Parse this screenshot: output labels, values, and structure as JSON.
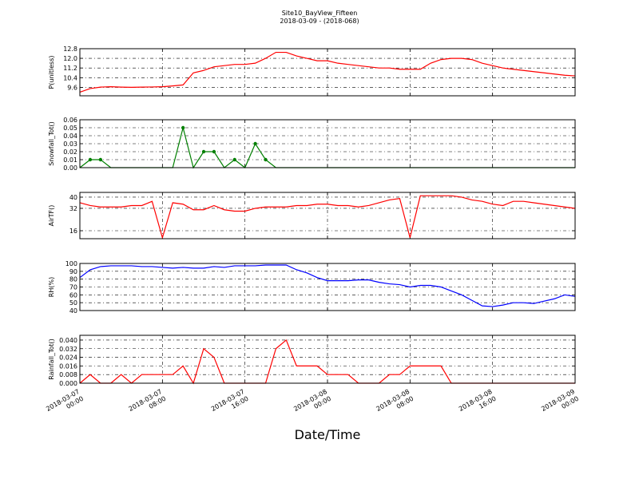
{
  "chart_data": {
    "type": "multi-line",
    "title": "Site10_BayView_Fifteen",
    "subtitle": "2018-03-09 - (2018-068)",
    "x_label": "Date/Time",
    "grid": true,
    "x": [
      "2018-03-07 00:00",
      "2018-03-07 01:00",
      "2018-03-07 02:00",
      "2018-03-07 03:00",
      "2018-03-07 04:00",
      "2018-03-07 05:00",
      "2018-03-07 06:00",
      "2018-03-07 07:00",
      "2018-03-07 08:00",
      "2018-03-07 09:00",
      "2018-03-07 10:00",
      "2018-03-07 11:00",
      "2018-03-07 12:00",
      "2018-03-07 13:00",
      "2018-03-07 14:00",
      "2018-03-07 15:00",
      "2018-03-07 16:00",
      "2018-03-07 17:00",
      "2018-03-07 18:00",
      "2018-03-07 19:00",
      "2018-03-07 20:00",
      "2018-03-07 21:00",
      "2018-03-07 22:00",
      "2018-03-07 23:00",
      "2018-03-08 00:00",
      "2018-03-08 01:00",
      "2018-03-08 02:00",
      "2018-03-08 03:00",
      "2018-03-08 04:00",
      "2018-03-08 05:00",
      "2018-03-08 06:00",
      "2018-03-08 07:00",
      "2018-03-08 08:00",
      "2018-03-08 09:00",
      "2018-03-08 10:00",
      "2018-03-08 11:00",
      "2018-03-08 12:00",
      "2018-03-08 13:00",
      "2018-03-08 14:00",
      "2018-03-08 15:00",
      "2018-03-08 16:00",
      "2018-03-08 17:00",
      "2018-03-08 18:00",
      "2018-03-08 19:00",
      "2018-03-08 20:00",
      "2018-03-08 21:00",
      "2018-03-08 22:00",
      "2018-03-08 23:00",
      "2018-03-09 00:00"
    ],
    "xlim": [
      "2018-03-07 00:00",
      "2018-03-09 00:00"
    ],
    "xticks": [
      {
        "value": "2018-03-07 00:00",
        "label": "2018-03-07\n00:00"
      },
      {
        "value": "2018-03-07 08:00",
        "label": "2018-03-07\n08:00"
      },
      {
        "value": "2018-03-07 16:00",
        "label": "2018-03-07\n16:00"
      },
      {
        "value": "2018-03-08 00:00",
        "label": "2018-03-08\n00:00"
      },
      {
        "value": "2018-03-08 08:00",
        "label": "2018-03-08\n08:00"
      },
      {
        "value": "2018-03-08 16:00",
        "label": "2018-03-08\n16:00"
      },
      {
        "value": "2018-03-09 00:00",
        "label": "2018-03-09\n00:00"
      }
    ],
    "panels": [
      {
        "y_label": "P(unitless)",
        "color": "#ff0000",
        "markers": false,
        "ylim": [
          8.9,
          12.8
        ],
        "yticks": [
          9.6,
          10.4,
          11.2,
          {
            "value": 12,
            "label": "12.0"
          },
          12.8
        ],
        "values": [
          9.2,
          9.5,
          9.62,
          9.65,
          9.62,
          9.6,
          9.62,
          9.63,
          9.65,
          9.72,
          9.8,
          10.8,
          11.0,
          11.3,
          11.4,
          11.5,
          11.5,
          11.6,
          12.0,
          12.5,
          12.5,
          12.2,
          12.0,
          11.8,
          11.8,
          11.6,
          11.5,
          11.4,
          11.3,
          11.2,
          11.2,
          11.1,
          11.1,
          11.1,
          11.6,
          11.9,
          12.0,
          12.0,
          11.9,
          11.6,
          11.4,
          11.2,
          11.1,
          11.0,
          10.9,
          10.8,
          10.7,
          10.6,
          10.55
        ]
      },
      {
        "y_label": "Snowfall_Tot()",
        "color": "#007f00",
        "markers": true,
        "ylim": [
          0,
          0.06
        ],
        "yticks": [
          {
            "value": 0,
            "label": "0.00"
          },
          0.01,
          0.02,
          0.03,
          0.04,
          0.05,
          0.06
        ],
        "values": [
          0,
          0.01,
          0.01,
          0,
          0,
          0,
          0,
          0,
          0,
          0,
          0.05,
          0,
          0.02,
          0.02,
          0,
          0.01,
          0,
          0.03,
          0.01,
          0,
          0,
          0,
          0,
          0,
          0,
          0,
          0,
          0,
          0,
          0,
          0,
          0,
          0,
          0,
          0,
          0,
          0,
          0,
          0,
          0,
          0,
          0,
          0,
          0,
          0,
          0,
          0,
          0,
          0
        ]
      },
      {
        "y_label": "AirTF()",
        "color": "#ff0000",
        "markers": false,
        "ylim": [
          10.3,
          43.4
        ],
        "yticks": [
          16,
          32,
          40
        ],
        "values": [
          36,
          34,
          33,
          33,
          33,
          34,
          34,
          37,
          11,
          36,
          35,
          31,
          31,
          34,
          31,
          30,
          30,
          32,
          33,
          33,
          33,
          34,
          34,
          35,
          35,
          34,
          34,
          33,
          34,
          36,
          38,
          39,
          11,
          41,
          41,
          41,
          41,
          40,
          38,
          37,
          35,
          34,
          37,
          37,
          36,
          35,
          34,
          33,
          32
        ]
      },
      {
        "y_label": "RH(%)",
        "color": "#0000ff",
        "markers": false,
        "ylim": [
          40,
          100
        ],
        "yticks": [
          40,
          50,
          60,
          70,
          80,
          90,
          100
        ],
        "values": [
          82,
          92,
          96,
          97,
          97,
          97,
          96,
          96,
          95,
          94,
          95,
          94,
          94,
          96,
          95,
          97,
          97,
          97,
          98,
          98,
          98,
          92,
          88,
          82,
          78,
          78,
          78,
          79,
          79,
          76,
          74,
          73,
          70,
          72,
          72,
          70,
          65,
          60,
          53,
          46,
          45,
          47,
          50,
          50,
          49,
          52,
          55,
          60,
          58
        ]
      },
      {
        "y_label": "Rainfall_Tot()",
        "color": "#ff0000",
        "markers": false,
        "ylim": [
          0,
          0.0444
        ],
        "yticks": [
          {
            "value": 0,
            "label": "0.000"
          },
          {
            "value": 0.008,
            "label": "0.008"
          },
          {
            "value": 0.016,
            "label": "0.016"
          },
          {
            "value": 0.024,
            "label": "0.024"
          },
          {
            "value": 0.032,
            "label": "0.032"
          },
          {
            "value": 0.04,
            "label": "0.040"
          }
        ],
        "values": [
          0,
          0.008,
          0,
          0,
          0.008,
          0,
          0.008,
          0.008,
          0.008,
          0.008,
          0.016,
          0,
          0.032,
          0.024,
          0,
          0,
          0,
          0,
          0,
          0.032,
          0.04,
          0.016,
          0.016,
          0.016,
          0.008,
          0.008,
          0.008,
          0,
          0,
          0,
          0.008,
          0.008,
          0.016,
          0.016,
          0.016,
          0.016,
          0,
          0,
          0,
          0,
          0,
          0,
          0,
          0,
          0,
          0,
          0,
          0,
          0
        ]
      }
    ]
  }
}
